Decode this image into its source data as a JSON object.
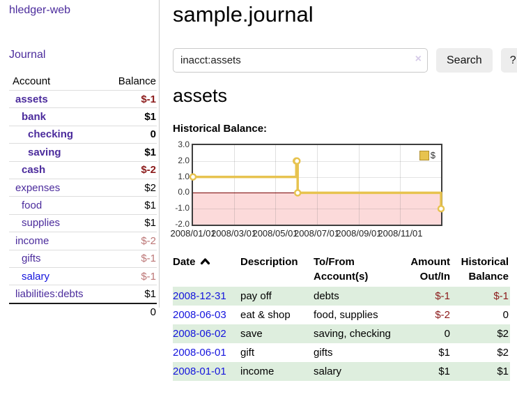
{
  "brand": "hledger-web",
  "nav": {
    "journal": "Journal"
  },
  "sidebar_table": {
    "headers": {
      "account": "Account",
      "balance": "Balance"
    },
    "rows": [
      {
        "name": "assets",
        "balance": "$-1",
        "level": 1,
        "bold": true,
        "neg": "strong",
        "link": "purple"
      },
      {
        "name": "bank",
        "balance": "$1",
        "level": 2,
        "bold": true,
        "neg": "none",
        "link": "purple"
      },
      {
        "name": "checking",
        "balance": "0",
        "level": 3,
        "bold": true,
        "neg": "none",
        "link": "purple"
      },
      {
        "name": "saving",
        "balance": "$1",
        "level": 3,
        "bold": true,
        "neg": "none",
        "link": "purple"
      },
      {
        "name": "cash",
        "balance": "$-2",
        "level": 2,
        "bold": true,
        "neg": "strong",
        "link": "purple"
      },
      {
        "name": "expenses",
        "balance": "$2",
        "level": 1,
        "bold": false,
        "neg": "none",
        "link": "purple"
      },
      {
        "name": "food",
        "balance": "$1",
        "level": 2,
        "bold": false,
        "neg": "none",
        "link": "purple"
      },
      {
        "name": "supplies",
        "balance": "$1",
        "level": 2,
        "bold": false,
        "neg": "none",
        "link": "purple"
      },
      {
        "name": "income",
        "balance": "$-2",
        "level": 1,
        "bold": false,
        "neg": "muted",
        "link": "purple"
      },
      {
        "name": "gifts",
        "balance": "$-1",
        "level": 2,
        "bold": false,
        "neg": "muted",
        "link": "purple"
      },
      {
        "name": "salary",
        "balance": "$-1",
        "level": 2,
        "bold": false,
        "neg": "muted",
        "link": "blue"
      },
      {
        "name": "liabilities:debts",
        "balance": "$1",
        "level": 1,
        "bold": false,
        "neg": "none",
        "link": "purple"
      }
    ],
    "total": "0"
  },
  "header": {
    "title": "sample.journal"
  },
  "search": {
    "value": "inacct:assets",
    "clear_icon": "×",
    "button": "Search",
    "help_button": "?"
  },
  "account_page": {
    "heading": "assets",
    "chart_label": "Historical Balance:"
  },
  "chart_data": {
    "type": "line",
    "step": true,
    "title": "Historical Balance",
    "series": [
      {
        "name": "$",
        "points": [
          [
            "2008-01-01",
            1
          ],
          [
            "2008-06-01",
            2
          ],
          [
            "2008-06-02",
            2
          ],
          [
            "2008-06-03",
            0
          ],
          [
            "2008-12-31",
            -1
          ]
        ]
      }
    ],
    "x_domain": [
      "2008-01-01",
      "2008-12-31"
    ],
    "ylim": [
      -2,
      3
    ],
    "y_ticks": [
      {
        "v": 3,
        "label": "3.0"
      },
      {
        "v": 2,
        "label": "2.0"
      },
      {
        "v": 1,
        "label": "1.0"
      },
      {
        "v": 0,
        "label": "0.0"
      },
      {
        "v": -1,
        "label": "-1.0"
      },
      {
        "v": -2,
        "label": "-2.0"
      }
    ],
    "x_ticks": [
      {
        "d": "2008-01-01",
        "label": "2008/01/01"
      },
      {
        "d": "2008-03-01",
        "label": "2008/03/01"
      },
      {
        "d": "2008-05-01",
        "label": "2008/05/01"
      },
      {
        "d": "2008-07-01",
        "label": "2008/07/01"
      },
      {
        "d": "2008-09-01",
        "label": "2008/09/01"
      },
      {
        "d": "2008-11-01",
        "label": "2008/11/01"
      }
    ],
    "legend": {
      "label": "$",
      "position": "top-right"
    },
    "colors": {
      "line": "#e7c34f",
      "marker_fill": "#ffffff",
      "negative_region": "#fcdada",
      "zero_line": "#7a0000"
    },
    "grid": true
  },
  "transactions": {
    "headers": [
      "Date",
      "Description",
      "To/From Account(s)",
      "Amount Out/In",
      "Historical Balance"
    ],
    "sort": {
      "column": "Date",
      "direction": "asc"
    },
    "rows": [
      {
        "date": "2008-12-31",
        "description": "pay off",
        "accounts": "debts",
        "amount": "$-1",
        "amount_neg": true,
        "balance": "$-1",
        "balance_neg": true,
        "shaded": true
      },
      {
        "date": "2008-06-03",
        "description": "eat & shop",
        "accounts": "food, supplies",
        "amount": "$-2",
        "amount_neg": true,
        "balance": "0",
        "balance_neg": false,
        "shaded": false
      },
      {
        "date": "2008-06-02",
        "description": "save",
        "accounts": "saving, checking",
        "amount": "0",
        "amount_neg": false,
        "balance": "$2",
        "balance_neg": false,
        "shaded": true
      },
      {
        "date": "2008-06-01",
        "description": "gift",
        "accounts": "gifts",
        "amount": "$1",
        "amount_neg": false,
        "balance": "$2",
        "balance_neg": false,
        "shaded": false
      },
      {
        "date": "2008-01-01",
        "description": "income",
        "accounts": "salary",
        "amount": "$1",
        "amount_neg": false,
        "balance": "$1",
        "balance_neg": false,
        "shaded": true
      }
    ]
  }
}
